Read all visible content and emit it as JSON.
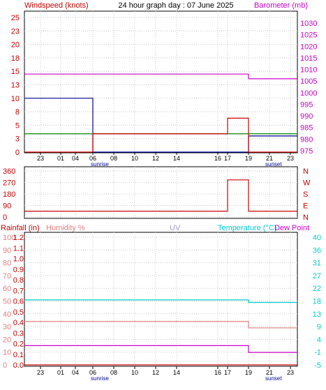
{
  "header": {
    "left_label": "Windspeed (knots)",
    "title": "24 hour graph day : 07 June 2025",
    "right_label": "Barometer (mb)"
  },
  "colors": {
    "windspeed_label": "#cc0000",
    "barometer": "#cc00cc",
    "wind_avg": "#000099",
    "wind_gust": "#008800",
    "wind_extra": "#cc0000",
    "direction": "#cc0000",
    "rainfall": "#cc0000",
    "humidity": "#e08080",
    "uv": "#9999cc",
    "temperature": "#00cccc",
    "dewpoint": "#cc00cc"
  },
  "markers": {
    "sunrise": "sunrise",
    "sunset": "sunset"
  },
  "direction_labels": [
    "N",
    "W",
    "S",
    "E",
    "N"
  ],
  "panel3_labels": {
    "rainfall": "Rainfall (in)",
    "humidity": "Humidity %",
    "uv": "UV",
    "temperature": "Temperature (°C)",
    "dewpoint": "Dew Point"
  },
  "chart_data": [
    {
      "type": "line",
      "x_ticks": [
        "23",
        "01",
        "04",
        "06",
        "08",
        "10",
        "12",
        "14",
        "16",
        "17",
        "19",
        "21",
        "23"
      ],
      "left_ticks": [
        "25",
        "23",
        "20",
        "18",
        "15",
        "13",
        "10",
        "8",
        "5",
        "3",
        "0"
      ],
      "right_ticks": [
        "1030",
        "1025",
        "1020",
        "1015",
        "1010",
        "1005",
        "1000",
        "995",
        "990",
        "985",
        "980",
        "975"
      ],
      "series": [
        {
          "axis": "right",
          "values": [
            1008,
            1008,
            1008,
            1008,
            1008,
            1008,
            1008,
            1008,
            1008,
            1008,
            1006,
            1006,
            1006
          ]
        },
        {
          "axis": "left",
          "values": [
            10,
            10,
            10,
            0,
            0,
            0,
            0,
            0,
            0,
            0,
            3,
            3,
            3
          ]
        },
        {
          "axis": "left",
          "values": [
            3.4,
            3.4,
            3.4,
            3.4,
            3.4,
            3.4,
            3.4,
            3.4,
            3.4,
            3.4,
            3.4,
            3.4,
            3.4
          ]
        },
        {
          "axis": "left",
          "values": [
            0,
            0,
            0,
            3.4,
            3.4,
            3.4,
            3.4,
            3.4,
            3.4,
            6.3,
            0,
            0,
            0
          ]
        }
      ]
    },
    {
      "type": "line",
      "x_ticks": [
        "23",
        "01",
        "04",
        "06",
        "08",
        "10",
        "12",
        "14",
        "16",
        "17",
        "19",
        "21",
        "23"
      ],
      "left_ticks": [
        "360",
        "270",
        "180",
        "90",
        "0"
      ],
      "series": [
        {
          "values": [
            45,
            45,
            45,
            45,
            45,
            45,
            45,
            45,
            45,
            290,
            45,
            45,
            45
          ]
        }
      ]
    },
    {
      "type": "line",
      "x_ticks": [
        "23",
        "01",
        "04",
        "06",
        "08",
        "10",
        "12",
        "14",
        "16",
        "17",
        "19",
        "21",
        "23"
      ],
      "rain_ticks": [
        "1.2",
        "1.1",
        "1.0",
        "0.9",
        "0.8",
        "0.7",
        "0.6",
        "0.5",
        "0.4",
        "0.3",
        "0.2",
        "0.1",
        "0.0"
      ],
      "humidity_ticks": [
        "100",
        "90",
        "80",
        "70",
        "60",
        "50",
        "40",
        "30",
        "20",
        "10",
        "0"
      ],
      "temp_ticks": [
        "40",
        "36",
        "31",
        "27",
        "22",
        "18",
        "13",
        "9",
        "4",
        "-1",
        "-5"
      ],
      "series": [
        {
          "axis": "temperature",
          "values": [
            17.9,
            17.9,
            17.9,
            17.9,
            17.9,
            17.9,
            17.9,
            17.9,
            17.9,
            17.9,
            17.0,
            17.0,
            17.0
          ]
        },
        {
          "axis": "humidity",
          "values": [
            34,
            34,
            34,
            34,
            34,
            34,
            34,
            34,
            34,
            34,
            29,
            29,
            29
          ]
        },
        {
          "axis": "temperature",
          "values": [
            1.8,
            1.8,
            1.8,
            1.8,
            1.8,
            1.8,
            1.8,
            1.8,
            1.8,
            1.8,
            -0.6,
            -0.6,
            -0.6
          ]
        },
        {
          "axis": "rain",
          "values": [
            0,
            0,
            0,
            0,
            0,
            0,
            0,
            0,
            0,
            0,
            0,
            0,
            0
          ]
        }
      ]
    }
  ]
}
